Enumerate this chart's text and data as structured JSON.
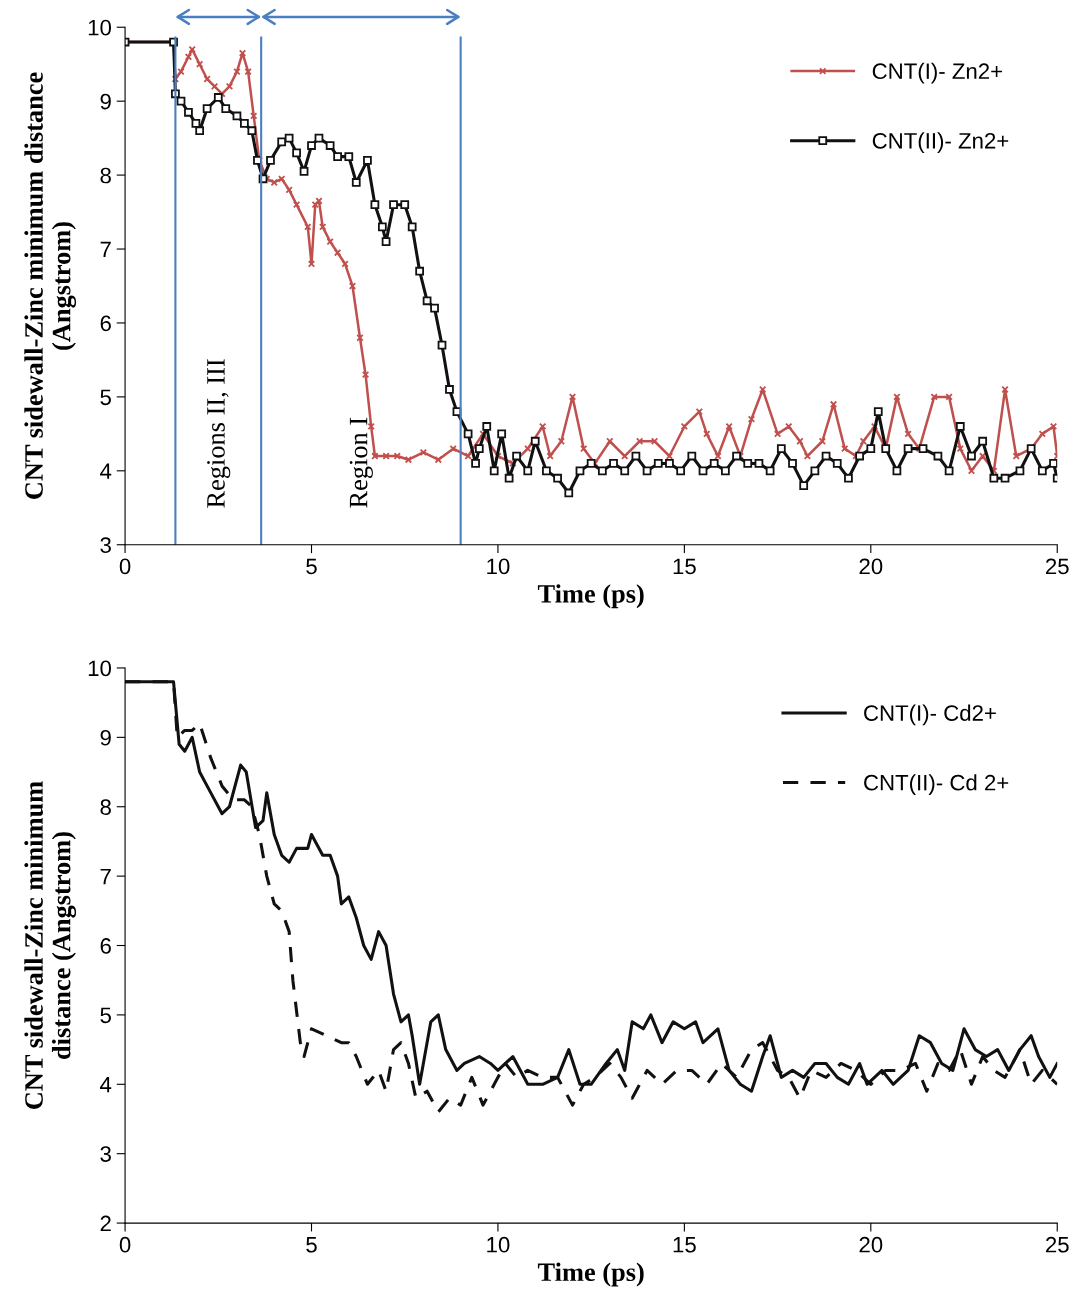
{
  "chart_data": [
    {
      "type": "line",
      "xlabel": "Time (ps)",
      "ylabel": "CNT sidewall-Zinc minimum distance\n(Angstrom)",
      "xlim": [
        0,
        25
      ],
      "xticks": [
        0,
        5,
        10,
        15,
        20,
        25
      ],
      "ylim": [
        3,
        10
      ],
      "yticks": [
        3,
        4,
        5,
        6,
        7,
        8,
        9,
        10
      ],
      "grid": false,
      "legend": "top right",
      "series": [
        {
          "name": "CNT(I)- Zn2+",
          "color": "#c0504d",
          "marker": "cross",
          "line_style": "solid",
          "x": [
            0,
            1.3,
            1.35,
            1.5,
            1.7,
            1.8,
            2.0,
            2.2,
            2.4,
            2.6,
            2.8,
            3.0,
            3.15,
            3.3,
            3.45,
            3.6,
            3.8,
            4.0,
            4.2,
            4.4,
            4.6,
            4.9,
            5.0,
            5.1,
            5.2,
            5.3,
            5.5,
            5.7,
            5.9,
            6.1,
            6.3,
            6.45,
            6.6,
            6.7,
            7.0,
            7.3,
            7.6,
            8.0,
            8.4,
            8.8,
            9.2,
            9.6,
            10.0,
            10.4,
            10.8,
            11.2,
            11.4,
            11.7,
            12.0,
            12.3,
            12.6,
            13.0,
            13.4,
            13.8,
            14.2,
            14.6,
            15.0,
            15.4,
            15.6,
            15.9,
            16.2,
            16.5,
            16.8,
            17.1,
            17.5,
            17.8,
            18.1,
            18.3,
            18.7,
            19.0,
            19.3,
            19.6,
            19.8,
            20.1,
            20.4,
            20.7,
            21.0,
            21.3,
            21.7,
            22.1,
            22.4,
            22.7,
            23.0,
            23.3,
            23.6,
            23.9,
            24.3,
            24.6,
            24.9,
            25.0
          ],
          "values": [
            9.8,
            9.8,
            9.3,
            9.4,
            9.6,
            9.7,
            9.5,
            9.3,
            9.2,
            9.1,
            9.2,
            9.4,
            9.65,
            9.4,
            8.8,
            8.2,
            7.95,
            7.9,
            7.95,
            7.8,
            7.6,
            7.3,
            6.8,
            7.6,
            7.65,
            7.3,
            7.1,
            6.95,
            6.8,
            6.5,
            5.8,
            5.3,
            4.6,
            4.2,
            4.2,
            4.2,
            4.15,
            4.25,
            4.15,
            4.3,
            4.2,
            4.5,
            4.2,
            4.1,
            4.3,
            4.6,
            4.2,
            4.4,
            5.0,
            4.3,
            4.1,
            4.4,
            4.2,
            4.4,
            4.4,
            4.2,
            4.6,
            4.8,
            4.5,
            4.2,
            4.6,
            4.2,
            4.7,
            5.1,
            4.5,
            4.6,
            4.4,
            4.2,
            4.4,
            4.9,
            4.3,
            4.2,
            4.4,
            4.6,
            4.3,
            5.0,
            4.5,
            4.3,
            5.0,
            5.0,
            4.3,
            4.0,
            4.2,
            4.0,
            5.1,
            4.2,
            4.3,
            4.5,
            4.6,
            4.2
          ]
        },
        {
          "name": "CNT(II)- Zn2+",
          "color": "#111111",
          "marker": "square",
          "line_style": "solid",
          "x": [
            0,
            1.3,
            1.35,
            1.5,
            1.7,
            1.9,
            2.0,
            2.2,
            2.5,
            2.7,
            3.0,
            3.2,
            3.4,
            3.55,
            3.7,
            3.9,
            4.2,
            4.4,
            4.6,
            4.8,
            5.0,
            5.2,
            5.5,
            5.7,
            6.0,
            6.2,
            6.5,
            6.7,
            6.9,
            7.0,
            7.2,
            7.5,
            7.7,
            7.9,
            8.1,
            8.3,
            8.5,
            8.7,
            8.9,
            9.2,
            9.4,
            9.5,
            9.7,
            9.9,
            10.1,
            10.3,
            10.5,
            10.8,
            11.0,
            11.3,
            11.6,
            11.9,
            12.2,
            12.5,
            12.8,
            13.1,
            13.4,
            13.7,
            14.0,
            14.3,
            14.6,
            14.9,
            15.2,
            15.5,
            15.8,
            16.1,
            16.4,
            16.7,
            17.0,
            17.3,
            17.6,
            17.9,
            18.2,
            18.5,
            18.8,
            19.1,
            19.4,
            19.7,
            20.0,
            20.2,
            20.4,
            20.7,
            21.0,
            21.4,
            21.8,
            22.1,
            22.4,
            22.7,
            23.0,
            23.3,
            23.6,
            24.0,
            24.3,
            24.6,
            24.9,
            25.0
          ],
          "values": [
            9.8,
            9.8,
            9.1,
            9.0,
            8.85,
            8.7,
            8.6,
            8.9,
            9.05,
            8.9,
            8.8,
            8.7,
            8.6,
            8.2,
            7.95,
            8.2,
            8.45,
            8.5,
            8.3,
            8.05,
            8.4,
            8.5,
            8.4,
            8.25,
            8.25,
            7.9,
            8.2,
            7.6,
            7.3,
            7.1,
            7.6,
            7.6,
            7.3,
            6.7,
            6.3,
            6.2,
            5.7,
            5.1,
            4.8,
            4.5,
            4.1,
            4.3,
            4.6,
            4.0,
            4.5,
            3.9,
            4.2,
            4.0,
            4.4,
            4.0,
            3.9,
            3.7,
            4.0,
            4.1,
            4.0,
            4.1,
            4.0,
            4.2,
            4.0,
            4.1,
            4.1,
            4.0,
            4.2,
            4.0,
            4.1,
            4.0,
            4.2,
            4.1,
            4.1,
            4.0,
            4.3,
            4.1,
            3.8,
            4.0,
            4.2,
            4.1,
            3.9,
            4.2,
            4.3,
            4.8,
            4.3,
            4.0,
            4.3,
            4.3,
            4.2,
            4.0,
            4.6,
            4.2,
            4.4,
            3.9,
            3.9,
            4.0,
            4.3,
            4.0,
            4.1,
            3.9
          ]
        }
      ],
      "ref_lines": [
        {
          "axis": "x",
          "value": 1.35,
          "color": "#4a7fc1"
        },
        {
          "axis": "x",
          "value": 3.65,
          "color": "#4a7fc1"
        },
        {
          "axis": "x",
          "value": 9.0,
          "color": "#4a7fc1"
        }
      ],
      "annotations": [
        "Regions II, III",
        "Region I"
      ]
    },
    {
      "type": "line",
      "xlabel": "Time (ps)",
      "ylabel": "CNT sidewall-Zinc minimum\ndistance (Angstrom)",
      "xlim": [
        0,
        25
      ],
      "xticks": [
        0,
        5,
        10,
        15,
        20,
        25
      ],
      "ylim": [
        2,
        10
      ],
      "yticks": [
        2,
        3,
        4,
        5,
        6,
        7,
        8,
        9,
        10
      ],
      "grid": false,
      "legend": "top right",
      "series": [
        {
          "name": "CNT(I)- Cd2+",
          "color": "#111111",
          "marker": "none",
          "line_style": "solid",
          "x": [
            0,
            1.3,
            1.35,
            1.45,
            1.6,
            1.8,
            2.0,
            2.3,
            2.6,
            2.8,
            3.0,
            3.1,
            3.25,
            3.5,
            3.7,
            3.8,
            4.0,
            4.2,
            4.4,
            4.6,
            4.9,
            5.0,
            5.3,
            5.5,
            5.7,
            5.8,
            6.0,
            6.2,
            6.4,
            6.6,
            6.8,
            7.0,
            7.2,
            7.4,
            7.6,
            7.7,
            7.9,
            8.2,
            8.4,
            8.6,
            8.9,
            9.1,
            9.5,
            9.8,
            10.0,
            10.4,
            10.8,
            11.2,
            11.6,
            11.9,
            12.2,
            12.5,
            12.9,
            13.2,
            13.4,
            13.6,
            13.9,
            14.1,
            14.4,
            14.7,
            15.0,
            15.3,
            15.5,
            15.9,
            16.2,
            16.5,
            16.8,
            17.1,
            17.3,
            17.6,
            17.9,
            18.2,
            18.5,
            18.8,
            19.1,
            19.4,
            19.7,
            19.9,
            20.3,
            20.6,
            21.0,
            21.3,
            21.6,
            21.9,
            22.2,
            22.5,
            22.8,
            23.1,
            23.4,
            23.7,
            24.0,
            24.3,
            24.5,
            24.8,
            25.0
          ],
          "values": [
            9.8,
            9.8,
            9.5,
            8.9,
            8.8,
            9.0,
            8.5,
            8.2,
            7.9,
            8.0,
            8.4,
            8.6,
            8.5,
            7.7,
            7.8,
            8.2,
            7.6,
            7.3,
            7.2,
            7.4,
            7.4,
            7.6,
            7.3,
            7.3,
            7.0,
            6.6,
            6.7,
            6.4,
            6.0,
            5.8,
            6.2,
            6.0,
            5.3,
            4.9,
            5.0,
            4.7,
            4.0,
            4.9,
            5.0,
            4.5,
            4.2,
            4.3,
            4.4,
            4.3,
            4.2,
            4.4,
            4.0,
            4.0,
            4.1,
            4.5,
            4.0,
            4.0,
            4.3,
            4.5,
            4.2,
            4.9,
            4.8,
            5.0,
            4.6,
            4.9,
            4.8,
            4.9,
            4.6,
            4.8,
            4.2,
            4.0,
            3.9,
            4.4,
            4.7,
            4.1,
            4.2,
            4.1,
            4.3,
            4.3,
            4.1,
            4.0,
            4.3,
            4.0,
            4.2,
            4.0,
            4.2,
            4.7,
            4.6,
            4.3,
            4.2,
            4.8,
            4.5,
            4.4,
            4.5,
            4.2,
            4.5,
            4.7,
            4.4,
            4.1,
            4.3
          ]
        },
        {
          "name": "CNT(II)- Cd 2+",
          "color": "#111111",
          "marker": "none",
          "line_style": "dashed",
          "x": [
            0,
            1.3,
            1.4,
            1.6,
            1.8,
            2.0,
            2.3,
            2.6,
            2.9,
            3.2,
            3.4,
            3.6,
            3.8,
            4.0,
            4.2,
            4.4,
            4.5,
            4.7,
            4.8,
            5.0,
            5.4,
            5.8,
            6.0,
            6.2,
            6.5,
            6.8,
            7.0,
            7.2,
            7.4,
            7.6,
            7.8,
            8.1,
            8.4,
            8.7,
            9.0,
            9.3,
            9.6,
            9.9,
            10.2,
            10.5,
            10.8,
            11.2,
            11.6,
            12.0,
            12.3,
            12.6,
            13.0,
            13.3,
            13.6,
            14.0,
            14.4,
            14.8,
            15.2,
            15.6,
            16.0,
            16.4,
            16.8,
            17.1,
            17.5,
            17.8,
            18.1,
            18.4,
            18.8,
            19.2,
            19.6,
            20.0,
            20.4,
            20.8,
            21.2,
            21.5,
            21.8,
            22.1,
            22.4,
            22.7,
            23.0,
            23.3,
            23.6,
            24.0,
            24.3,
            24.6,
            25.0
          ],
          "values": [
            9.8,
            9.8,
            9.0,
            9.1,
            9.1,
            9.2,
            8.7,
            8.3,
            8.1,
            8.1,
            8.0,
            7.6,
            7.0,
            6.6,
            6.5,
            6.2,
            5.5,
            4.6,
            4.4,
            4.8,
            4.7,
            4.6,
            4.6,
            4.4,
            4.0,
            4.2,
            3.9,
            4.5,
            4.6,
            4.3,
            3.8,
            3.9,
            3.6,
            3.8,
            3.7,
            4.1,
            3.7,
            4.0,
            4.3,
            4.1,
            4.2,
            4.1,
            4.1,
            3.7,
            4.0,
            4.1,
            4.3,
            4.1,
            3.8,
            4.2,
            4.0,
            4.2,
            4.2,
            4.0,
            4.3,
            4.1,
            4.5,
            4.6,
            4.2,
            4.1,
            3.8,
            4.2,
            4.1,
            4.3,
            4.2,
            4.0,
            4.2,
            4.2,
            4.3,
            3.9,
            4.3,
            4.2,
            4.5,
            4.0,
            4.4,
            4.2,
            4.1,
            4.5,
            4.0,
            4.2,
            4.0
          ]
        }
      ]
    }
  ]
}
